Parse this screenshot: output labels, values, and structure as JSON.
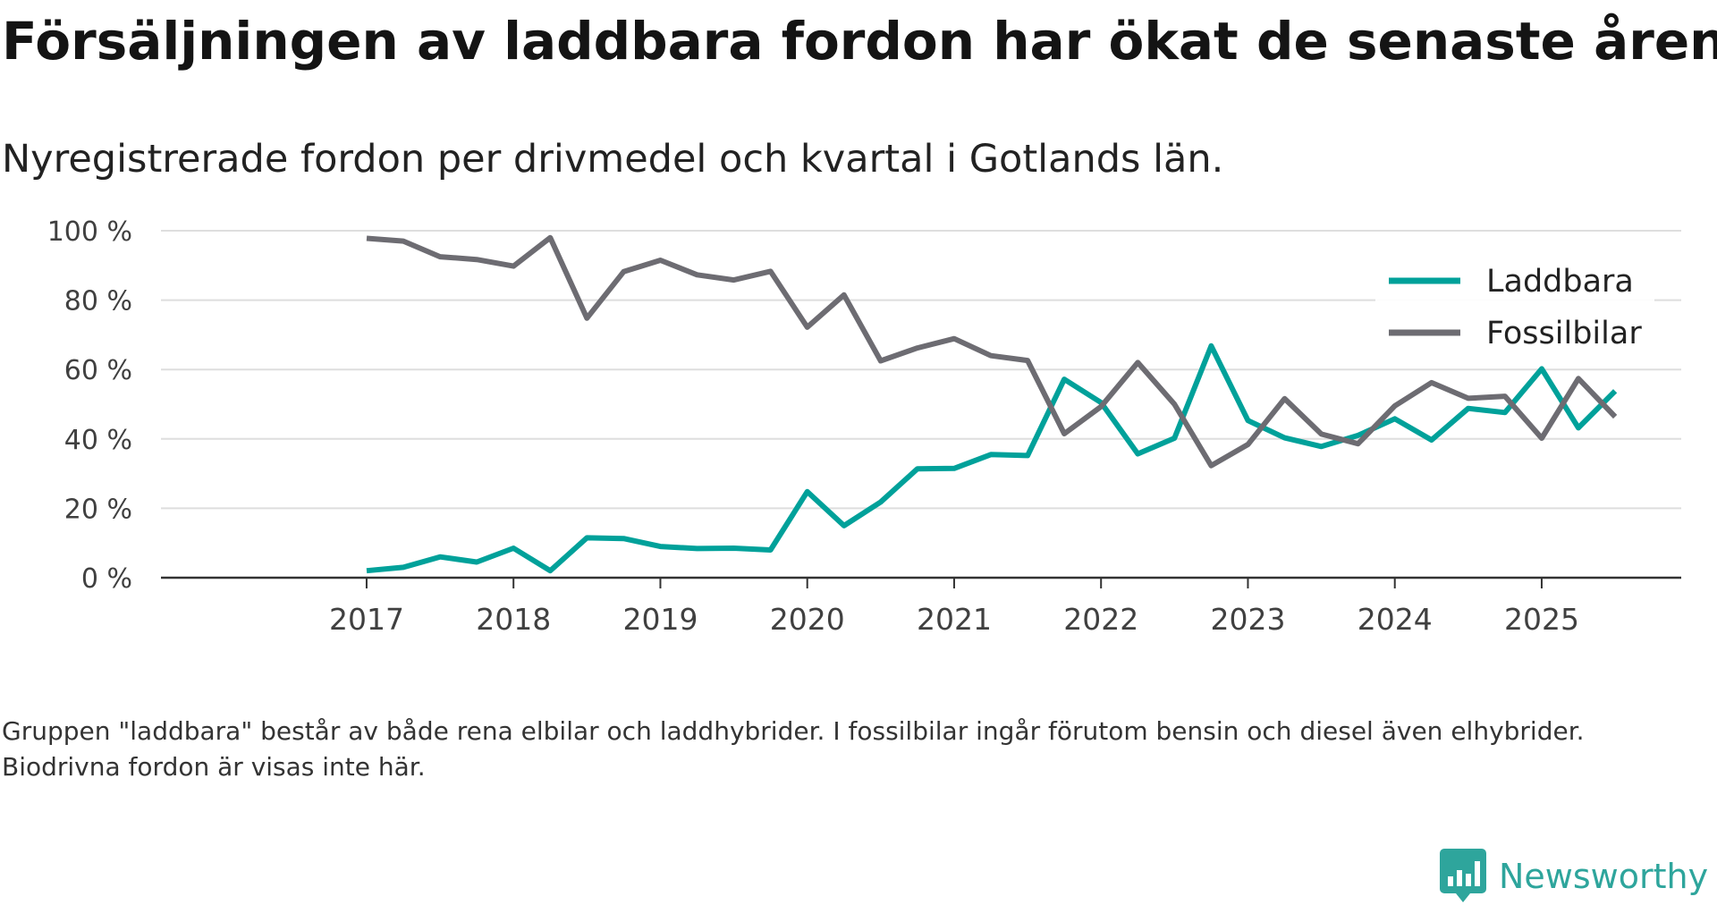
{
  "header": {
    "title": "Försäljningen av laddbara fordon har ökat de senaste åren",
    "subtitle": "Nyregistrerade fordon per drivmedel och kvartal i Gotlands län."
  },
  "footnote": "Gruppen \"laddbara\" består av både rena elbilar och laddhybrider. I fossilbilar ingår förutom bensin och diesel även elhybrider. Biodrivna fordon är visas inte här.",
  "brand": {
    "name": "Newsworthy",
    "logo_icon": "newsworthy-logo-icon",
    "color": "#2ea59c"
  },
  "chart_data": {
    "type": "line",
    "title": "Försäljningen av laddbara fordon har ökat de senaste åren",
    "subtitle": "Nyregistrerade fordon per drivmedel och kvartal i Gotlands län.",
    "xlabel": "",
    "ylabel": "",
    "ylim": [
      0,
      100
    ],
    "grid": true,
    "legend_position": "top-right",
    "y_ticks": [
      {
        "value": 0,
        "label": "0 %"
      },
      {
        "value": 20,
        "label": "20 %"
      },
      {
        "value": 40,
        "label": "40 %"
      },
      {
        "value": 60,
        "label": "60 %"
      },
      {
        "value": 80,
        "label": "80 %"
      },
      {
        "value": 100,
        "label": "100 %"
      }
    ],
    "x_ticks": [
      {
        "value": 2017.0,
        "label": "2017"
      },
      {
        "value": 2018.0,
        "label": "2018"
      },
      {
        "value": 2019.0,
        "label": "2019"
      },
      {
        "value": 2020.0,
        "label": "2020"
      },
      {
        "value": 2021.0,
        "label": "2021"
      },
      {
        "value": 2022.0,
        "label": "2022"
      },
      {
        "value": 2023.0,
        "label": "2023"
      },
      {
        "value": 2024.0,
        "label": "2024"
      },
      {
        "value": 2025.0,
        "label": "2025"
      }
    ],
    "xlim": [
      2015.6,
      2025.95
    ],
    "x": [
      2017.0,
      2017.25,
      2017.5,
      2017.75,
      2018.0,
      2018.25,
      2018.5,
      2018.75,
      2019.0,
      2019.25,
      2019.5,
      2019.75,
      2020.0,
      2020.25,
      2020.5,
      2020.75,
      2021.0,
      2021.25,
      2021.5,
      2021.75,
      2022.0,
      2022.25,
      2022.5,
      2022.75,
      2023.0,
      2023.25,
      2023.5,
      2023.75,
      2024.0,
      2024.25,
      2024.5,
      2024.75,
      2025.0,
      2025.25,
      2025.5
    ],
    "series": [
      {
        "name": "Laddbara",
        "color": "#00a19a",
        "values": [
          2,
          3,
          6,
          4.5,
          8.5,
          2,
          11.5,
          11.3,
          9,
          8.4,
          8.5,
          8,
          24.8,
          15,
          21.8,
          31.4,
          31.5,
          35.5,
          35.2,
          57.2,
          50.5,
          35.7,
          40.2,
          66.8,
          45.3,
          40.3,
          37.8,
          41,
          45.8,
          39.7,
          48.8,
          47.6,
          60.2,
          43.2,
          53.8
        ]
      },
      {
        "name": "Fossilbilar",
        "color": "#6d6c72",
        "values": [
          97.8,
          97,
          92.5,
          91.7,
          89.8,
          98,
          74.8,
          88.2,
          91.5,
          87.3,
          85.8,
          88.3,
          72.2,
          81.5,
          62.5,
          66.2,
          68.9,
          64,
          62.6,
          41.5,
          49.3,
          62,
          50,
          32.3,
          38.4,
          51.6,
          41.4,
          38.6,
          49.5,
          56.2,
          51.7,
          52.3,
          40.2,
          57.4,
          46.4
        ]
      }
    ]
  }
}
